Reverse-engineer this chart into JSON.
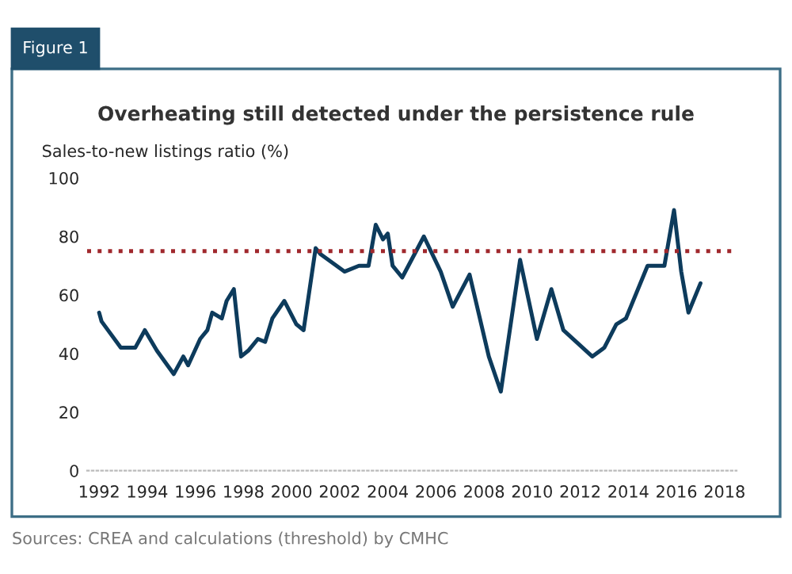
{
  "chart_data": {
    "type": "line",
    "title": "Overheating still detected under the persistence rule",
    "ylabel": "Sales-to-new listings ratio (%)",
    "x": [
      1992.0,
      1992.1,
      1992.9,
      1993.5,
      1993.9,
      1994.4,
      1995.1,
      1995.5,
      1995.7,
      1996.2,
      1996.5,
      1996.7,
      1997.1,
      1997.3,
      1997.6,
      1997.9,
      1998.2,
      1998.6,
      1998.9,
      1999.2,
      1999.7,
      2000.2,
      2000.5,
      2001.0,
      2001.2,
      2002.2,
      2002.8,
      2003.2,
      2003.5,
      2003.8,
      2004.0,
      2004.2,
      2004.6,
      2005.5,
      2006.2,
      2006.7,
      2007.4,
      2008.2,
      2008.7,
      2009.5,
      2010.2,
      2010.8,
      2011.3,
      2012.5,
      2013.0,
      2013.5,
      2013.9,
      2014.8,
      2015.5,
      2015.9,
      2016.2,
      2016.5,
      2017.0
    ],
    "series": [
      {
        "color": "#0d3b5c",
        "values": [
          54,
          51,
          42,
          42,
          48,
          41,
          33,
          39,
          36,
          45,
          48,
          54,
          52,
          58,
          62,
          39,
          41,
          45,
          44,
          52,
          58,
          50,
          48,
          76,
          74,
          68,
          70,
          70,
          84,
          79,
          81,
          70,
          66,
          80,
          68,
          56,
          67,
          39,
          27,
          72,
          45,
          62,
          48,
          39,
          42,
          50,
          52,
          70,
          70,
          89,
          68,
          54,
          64
        ]
      }
    ],
    "ref_lines": [
      {
        "axis": "y",
        "value": 75,
        "color": "#a0282d",
        "line_style": "dotted"
      }
    ],
    "xlim": [
      1991.5,
      2018.5
    ],
    "xticks": [
      1992,
      1994,
      1996,
      1998,
      2000,
      2002,
      2004,
      2006,
      2008,
      2010,
      2012,
      2014,
      2016,
      2018
    ],
    "ylim": [
      0,
      100
    ],
    "yticks": [
      0,
      20,
      40,
      60,
      80,
      100
    ],
    "grid": false,
    "legend": false,
    "marker": "none",
    "line_style": "solid",
    "annotations": [
      "Figure 1",
      "Sources: CREA and calculations (threshold) by CMHC"
    ]
  }
}
